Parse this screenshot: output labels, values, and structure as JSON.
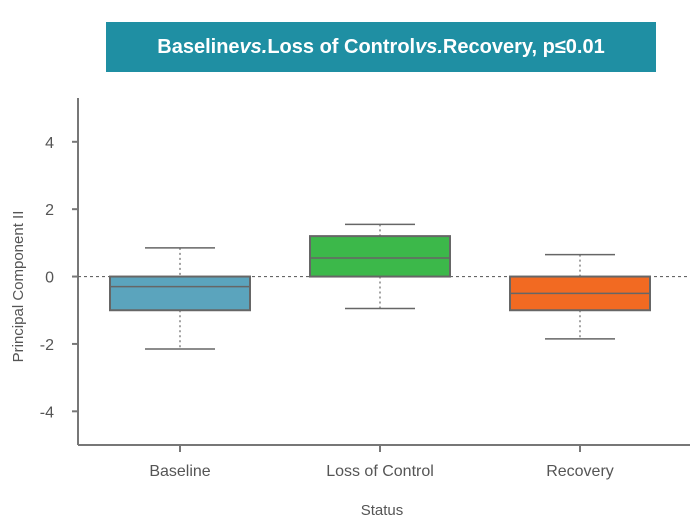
{
  "chart_data": {
    "type": "box",
    "title_parts": [
      {
        "text": "Baseline ",
        "italic": false
      },
      {
        "text": "vs.",
        "italic": true
      },
      {
        "text": " Loss of Control ",
        "italic": false
      },
      {
        "text": "vs.",
        "italic": true
      },
      {
        "text": " Recovery, p≤0.01",
        "italic": false
      }
    ],
    "title_bg": "#1f8fa3",
    "xlabel": "Status",
    "ylabel": "Principal Component II",
    "ylim": [
      -5,
      5.3
    ],
    "yticks": [
      4,
      2,
      0,
      -2,
      -4
    ],
    "ytick_labels": [
      "4",
      "2",
      "0",
      "-2",
      "-4"
    ],
    "reference_line": 0,
    "categories": [
      "Baseline",
      "Loss of Control",
      "Recovery"
    ],
    "boxes": [
      {
        "name": "Baseline",
        "min": -2.15,
        "q1": -1.0,
        "median": -0.3,
        "q3": 0.0,
        "max": 0.85,
        "color": "#5ba4bd"
      },
      {
        "name": "Loss of Control",
        "min": -0.95,
        "q1": 0.0,
        "median": 0.55,
        "q3": 1.2,
        "max": 1.55,
        "color": "#3cb84a"
      },
      {
        "name": "Recovery",
        "min": -1.85,
        "q1": -1.0,
        "median": -0.5,
        "q3": 0.0,
        "max": 0.65,
        "color": "#f26a22"
      }
    ]
  }
}
